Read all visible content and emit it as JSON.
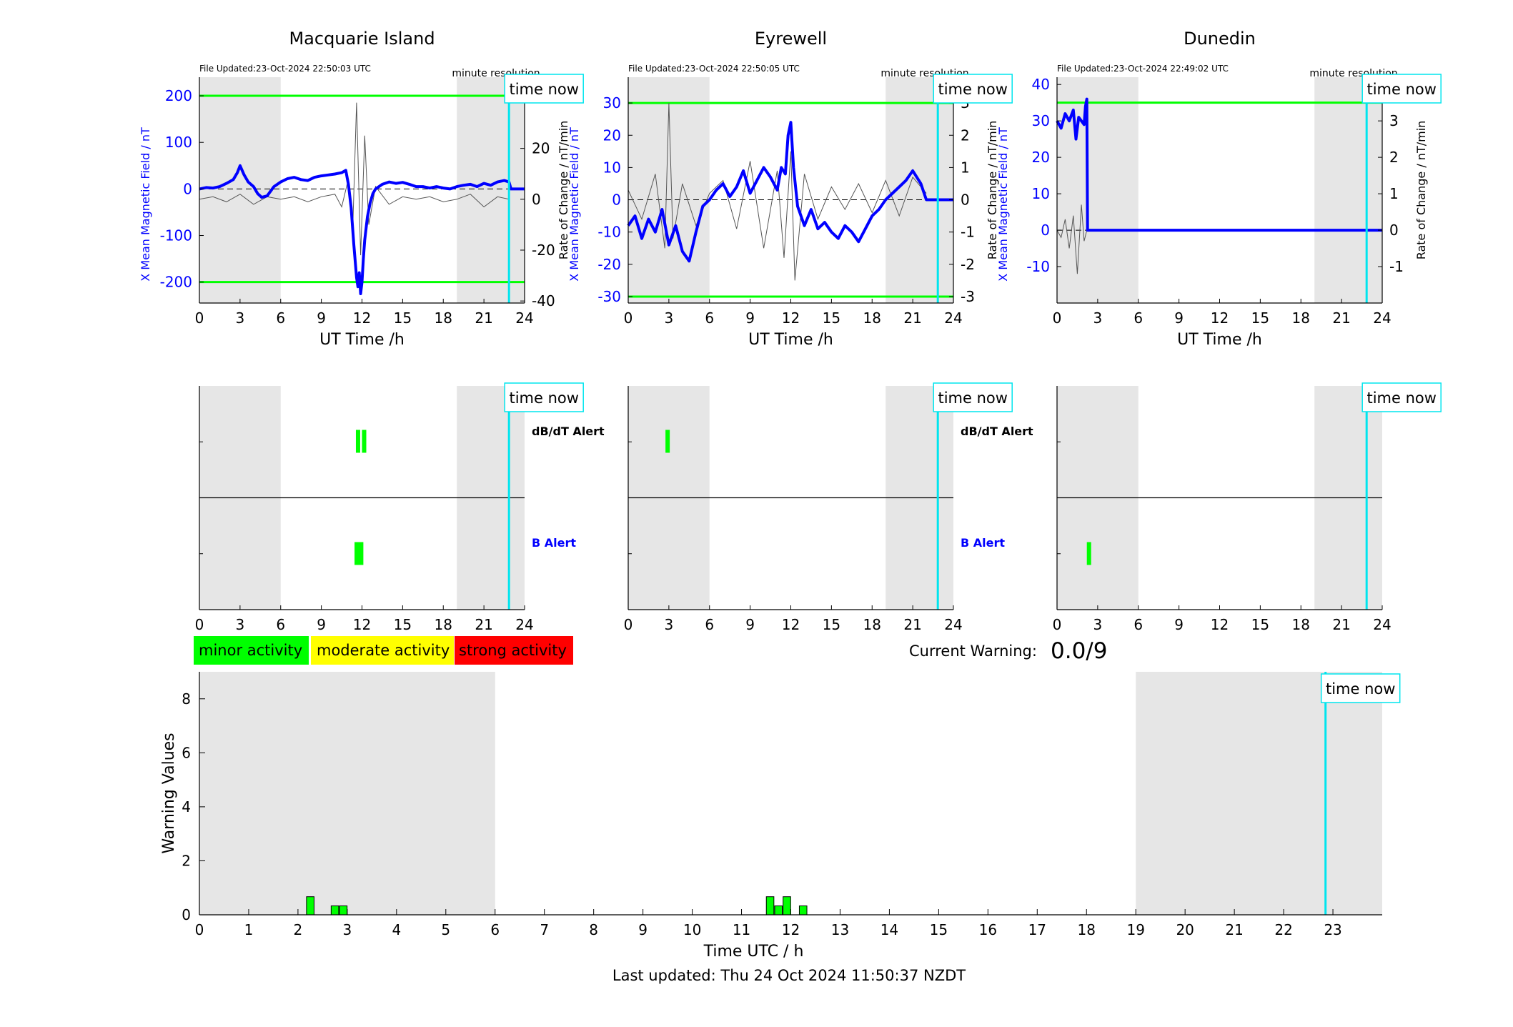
{
  "footer": {
    "last_updated": "Last updated: Thu 24 Oct 2024 11:50:37 NZDT"
  },
  "legend": {
    "items": [
      {
        "label": "minor activity",
        "color": "#00ff00"
      },
      {
        "label": "moderate activity",
        "color": "#ffff00"
      },
      {
        "label": "strong activity",
        "color": "#ff0000"
      }
    ]
  },
  "current_warning": {
    "label": "Current Warning:",
    "value": "0.0/9"
  },
  "labels": {
    "time_now": "time now",
    "dbdt_alert": "dB/dT Alert",
    "b_alert": "B Alert",
    "minute_resolution": "minute resolution",
    "left_ylabel": "X Mean Magnetic Field / nT",
    "right_ylabel": "Rate of Change / nT/min",
    "xlabel": "UT Time /h"
  },
  "colors": {
    "night_shade": "#e6e6e6",
    "field_line": "#0000ff",
    "threshold": "#00ff00",
    "time_now": "#00e5ee",
    "rate_line": "#555555",
    "left_axis_text": "#0000ff",
    "b_alert_text": "#0000ff",
    "bar_fill": "#00ff00"
  },
  "chart_data": [
    {
      "type": "line",
      "title": "Macquarie Island",
      "file_updated": "File Updated:23-Oct-2024 22:50:03 UTC",
      "xlabel": "UT Time /h",
      "ylabel": "X Mean Magnetic Field / nT",
      "ylabel_right": "Rate of Change / nT/min",
      "xlim": [
        0,
        24
      ],
      "xticks": [
        0,
        3,
        6,
        9,
        12,
        15,
        18,
        21,
        24
      ],
      "ylim": [
        -245,
        240
      ],
      "yticks": [
        -200,
        -100,
        0,
        100,
        200
      ],
      "ylim_right": [
        -40.8,
        48
      ],
      "yticks_right": [
        -40,
        -20,
        0,
        20,
        40
      ],
      "thresholds": [
        200,
        -200
      ],
      "night_bands": [
        [
          0,
          6
        ],
        [
          19,
          24
        ]
      ],
      "time_now": 22.85,
      "field_series": {
        "name": "X Mean Magnetic Field",
        "x": [
          0,
          0.5,
          1.0,
          1.5,
          2.0,
          2.5,
          2.8,
          3.0,
          3.3,
          3.6,
          4.0,
          4.3,
          4.6,
          5.0,
          5.5,
          6.0,
          6.5,
          7.0,
          7.5,
          8.0,
          8.5,
          9.0,
          9.5,
          10.0,
          10.5,
          10.8,
          11.0,
          11.2,
          11.4,
          11.6,
          11.7,
          11.8,
          11.9,
          12.0,
          12.1,
          12.2,
          12.4,
          12.6,
          12.8,
          13.0,
          13.5,
          14.0,
          14.5,
          15.0,
          15.5,
          16.0,
          16.5,
          17.0,
          17.5,
          18.0,
          18.5,
          19.0,
          19.5,
          20.0,
          20.5,
          21.0,
          21.5,
          22.0,
          22.5,
          22.85,
          23.0,
          24.0
        ],
        "values": [
          0,
          3,
          2,
          5,
          12,
          20,
          35,
          50,
          30,
          15,
          5,
          -10,
          -18,
          -15,
          5,
          15,
          22,
          25,
          20,
          18,
          25,
          28,
          30,
          32,
          35,
          40,
          10,
          -40,
          -120,
          -190,
          -210,
          -180,
          -225,
          -200,
          -150,
          -110,
          -60,
          -30,
          -10,
          0,
          10,
          15,
          12,
          14,
          10,
          5,
          5,
          2,
          5,
          2,
          0,
          5,
          8,
          10,
          5,
          12,
          8,
          15,
          18,
          15,
          0,
          0
        ]
      },
      "rate_series": {
        "name": "Rate of Change",
        "x": [
          0,
          1,
          2,
          3,
          4,
          5,
          6,
          7,
          8,
          9,
          10,
          10.5,
          11,
          11.3,
          11.6,
          11.9,
          12.2,
          12.5,
          13,
          14,
          15,
          16,
          17,
          18,
          19,
          20,
          21,
          22,
          22.85
        ],
        "values": [
          0,
          1,
          -1,
          2,
          -2,
          1,
          0,
          1,
          -1,
          1,
          2,
          -3,
          8,
          -15,
          38,
          -22,
          25,
          -10,
          5,
          -2,
          1,
          0,
          1,
          -1,
          0,
          2,
          -3,
          1,
          0
        ]
      }
    },
    {
      "type": "line",
      "title": "Eyrewell",
      "file_updated": "File Updated:23-Oct-2024 22:50:05 UTC",
      "xlabel": "UT Time /h",
      "ylabel": "X Mean Magnetic Field / nT",
      "ylabel_right": "Rate of Change / nT/min",
      "xlim": [
        0,
        24
      ],
      "xticks": [
        0,
        3,
        6,
        9,
        12,
        15,
        18,
        21,
        24
      ],
      "ylim": [
        -32,
        38
      ],
      "yticks": [
        -30,
        -20,
        -10,
        0,
        10,
        20,
        30
      ],
      "ylim_right": [
        -3.2,
        3.8
      ],
      "yticks_right": [
        -3,
        -2,
        -1,
        0,
        1,
        2,
        3
      ],
      "thresholds": [
        30,
        -30
      ],
      "night_bands": [
        [
          0,
          6
        ],
        [
          19,
          24
        ]
      ],
      "time_now": 22.85,
      "field_series": {
        "name": "X Mean Magnetic Field",
        "x": [
          0,
          0.5,
          1.0,
          1.5,
          2.0,
          2.5,
          3.0,
          3.5,
          4.0,
          4.5,
          5.0,
          5.5,
          6.0,
          6.5,
          7.0,
          7.5,
          8.0,
          8.5,
          9.0,
          9.5,
          10.0,
          10.5,
          11.0,
          11.3,
          11.6,
          11.8,
          12.0,
          12.2,
          12.5,
          13.0,
          13.5,
          14.0,
          14.5,
          15.0,
          15.5,
          16.0,
          16.5,
          17.0,
          17.5,
          18.0,
          18.5,
          19.0,
          19.5,
          20.0,
          20.5,
          21.0,
          21.3,
          21.6,
          22.0,
          22.3,
          22.85,
          24.0
        ],
        "values": [
          -8,
          -5,
          -12,
          -6,
          -10,
          -3,
          -14,
          -8,
          -16,
          -19,
          -10,
          -2,
          0,
          3,
          5,
          1,
          4,
          9,
          2,
          6,
          10,
          7,
          3,
          10,
          8,
          20,
          24,
          10,
          -2,
          -8,
          -3,
          -9,
          -7,
          -10,
          -12,
          -8,
          -10,
          -13,
          -9,
          -5,
          -3,
          0,
          2,
          4,
          6,
          9,
          7,
          5,
          0,
          0,
          0,
          0
        ]
      },
      "rate_series": {
        "name": "Rate of Change",
        "x": [
          0,
          1,
          2,
          2.7,
          3,
          3.3,
          4,
          5,
          6,
          7,
          8,
          9,
          10,
          11,
          11.5,
          12,
          12.3,
          13,
          14,
          15,
          16,
          17,
          18,
          19,
          20,
          21,
          22
        ],
        "values": [
          0.3,
          -0.6,
          0.8,
          -1.5,
          3.0,
          -1.2,
          0.5,
          -0.8,
          0.2,
          0.6,
          -0.9,
          1.2,
          -1.5,
          0.9,
          -1.8,
          1.5,
          -2.5,
          0.8,
          -0.6,
          0.4,
          -0.3,
          0.5,
          -0.4,
          0.6,
          -0.5,
          0.7,
          0.2
        ]
      }
    },
    {
      "type": "line",
      "title": "Dunedin",
      "file_updated": "File Updated:23-Oct-2024 22:49:02 UTC",
      "xlabel": "UT Time /h",
      "ylabel": "X Mean Magnetic Field / nT",
      "ylabel_right": "Rate of Change / nT/min",
      "xlim": [
        0,
        24
      ],
      "xticks": [
        0,
        3,
        6,
        9,
        12,
        15,
        18,
        21,
        24
      ],
      "ylim": [
        -20,
        42
      ],
      "yticks": [
        -10,
        0,
        10,
        20,
        30,
        40
      ],
      "ylim_right": [
        -2.0,
        4.2
      ],
      "yticks_right": [
        -1,
        0,
        1,
        2,
        3,
        4
      ],
      "thresholds": [
        35
      ],
      "night_bands": [
        [
          0,
          6
        ],
        [
          19,
          24
        ]
      ],
      "time_now": 22.85,
      "field_series": {
        "name": "X Mean Magnetic Field",
        "x": [
          0,
          0.3,
          0.6,
          0.9,
          1.2,
          1.4,
          1.6,
          1.8,
          2.0,
          2.1,
          2.2,
          2.25,
          2.3,
          24.0
        ],
        "values": [
          30,
          28,
          32,
          30,
          33,
          25,
          31,
          30,
          29,
          34,
          36,
          0,
          0,
          0
        ]
      },
      "rate_series": {
        "name": "Rate of Change",
        "x": [
          0,
          0.3,
          0.6,
          0.9,
          1.2,
          1.5,
          1.8,
          2.0,
          2.2
        ],
        "values": [
          0,
          -0.2,
          0.3,
          -0.5,
          0.4,
          -1.2,
          0.7,
          -0.3,
          0
        ]
      }
    },
    {
      "type": "bar",
      "title": "dB/dT Alert / B Alert",
      "xlim": [
        0,
        24
      ],
      "xticks": [
        0,
        3,
        6,
        9,
        12,
        15,
        18,
        21,
        24
      ],
      "station": "Macquarie Island",
      "night_bands": [
        [
          0,
          6
        ],
        [
          19,
          24
        ]
      ],
      "time_now": 22.85,
      "dbdt_alerts": [
        {
          "start": 11.55,
          "end": 11.75
        },
        {
          "start": 12.0,
          "end": 12.2
        }
      ],
      "b_alerts": [
        {
          "start": 11.45,
          "end": 12.1
        }
      ]
    },
    {
      "type": "bar",
      "title": "dB/dT Alert / B Alert",
      "xlim": [
        0,
        24
      ],
      "xticks": [
        0,
        3,
        6,
        9,
        12,
        15,
        18,
        21,
        24
      ],
      "station": "Eyrewell",
      "night_bands": [
        [
          0,
          6
        ],
        [
          19,
          24
        ]
      ],
      "time_now": 22.85,
      "dbdt_alerts": [
        {
          "start": 2.75,
          "end": 3.0
        }
      ],
      "b_alerts": []
    },
    {
      "type": "bar",
      "title": "dB/dT Alert / B Alert",
      "xlim": [
        0,
        24
      ],
      "xticks": [
        0,
        3,
        6,
        9,
        12,
        15,
        18,
        21,
        24
      ],
      "station": "Dunedin",
      "night_bands": [
        [
          0,
          6
        ],
        [
          19,
          24
        ]
      ],
      "time_now": 22.85,
      "dbdt_alerts": [],
      "b_alerts": [
        {
          "start": 2.2,
          "end": 2.4
        }
      ]
    },
    {
      "type": "bar",
      "title": "",
      "xlabel": "Time UTC / h",
      "ylabel": "Warning Values",
      "xlim": [
        0,
        24
      ],
      "xticks": [
        0,
        1,
        2,
        3,
        4,
        5,
        6,
        7,
        8,
        9,
        10,
        11,
        12,
        13,
        14,
        15,
        16,
        17,
        18,
        19,
        20,
        21,
        22,
        23
      ],
      "ylim": [
        0,
        9
      ],
      "yticks": [
        0,
        2,
        4,
        6,
        8
      ],
      "night_bands": [
        [
          0,
          6
        ],
        [
          19,
          24
        ]
      ],
      "time_now": 22.85,
      "bars": [
        {
          "x": 2.25,
          "value": 0.67
        },
        {
          "x": 2.75,
          "value": 0.33
        },
        {
          "x": 2.92,
          "value": 0.33
        },
        {
          "x": 11.58,
          "value": 0.67
        },
        {
          "x": 11.75,
          "value": 0.33
        },
        {
          "x": 11.92,
          "value": 0.67
        },
        {
          "x": 12.25,
          "value": 0.33
        }
      ]
    }
  ]
}
